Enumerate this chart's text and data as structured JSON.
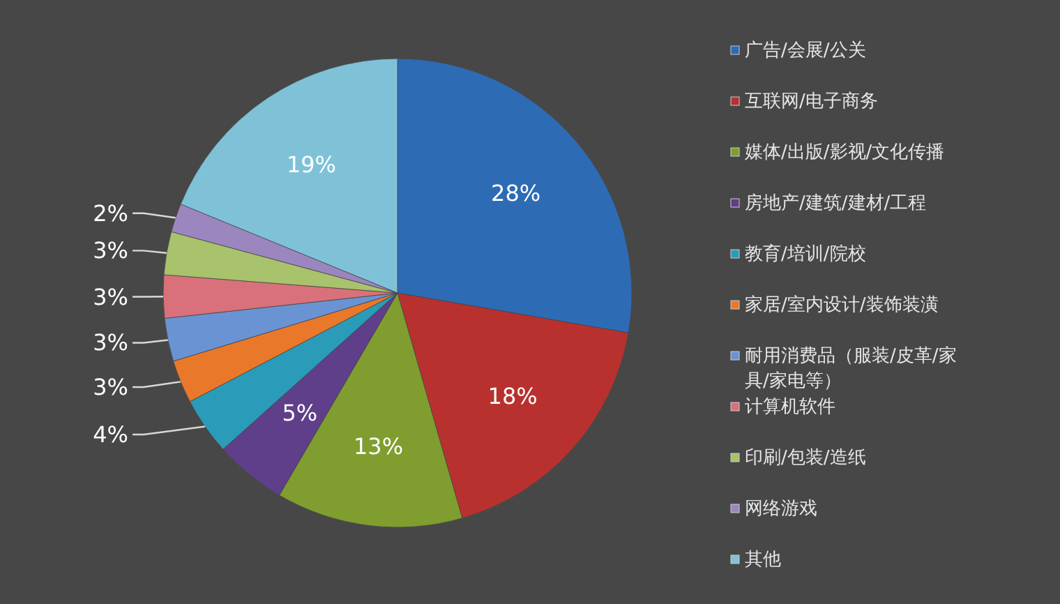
{
  "chart_data": {
    "type": "pie",
    "categories": [
      "广告/会展/公关",
      "互联网/电子商务",
      "媒体/出版/影视/文化传播",
      "房地产/建筑/建材/工程",
      "教育/培训/院校",
      "家居/室内设计/装饰装潢",
      "耐用消费品（服装/皮革/家具/家电等）",
      "计算机软件",
      "印刷/包装/造纸",
      "网络游戏",
      "其他"
    ],
    "values": [
      28,
      18,
      13,
      5,
      4,
      3,
      3,
      3,
      3,
      2,
      19
    ],
    "value_labels": [
      "28%",
      "18%",
      "13%",
      "5%",
      "4%",
      "3%",
      "3%",
      "3%",
      "3%",
      "2%",
      "19%"
    ],
    "colors": [
      "#2e6bb5",
      "#b8312e",
      "#7f9e2f",
      "#5f3e8a",
      "#2a9bb8",
      "#e9782a",
      "#6a93d4",
      "#d9717a",
      "#a9c26c",
      "#9b86c0",
      "#7fc2d8"
    ],
    "legend": "right"
  }
}
